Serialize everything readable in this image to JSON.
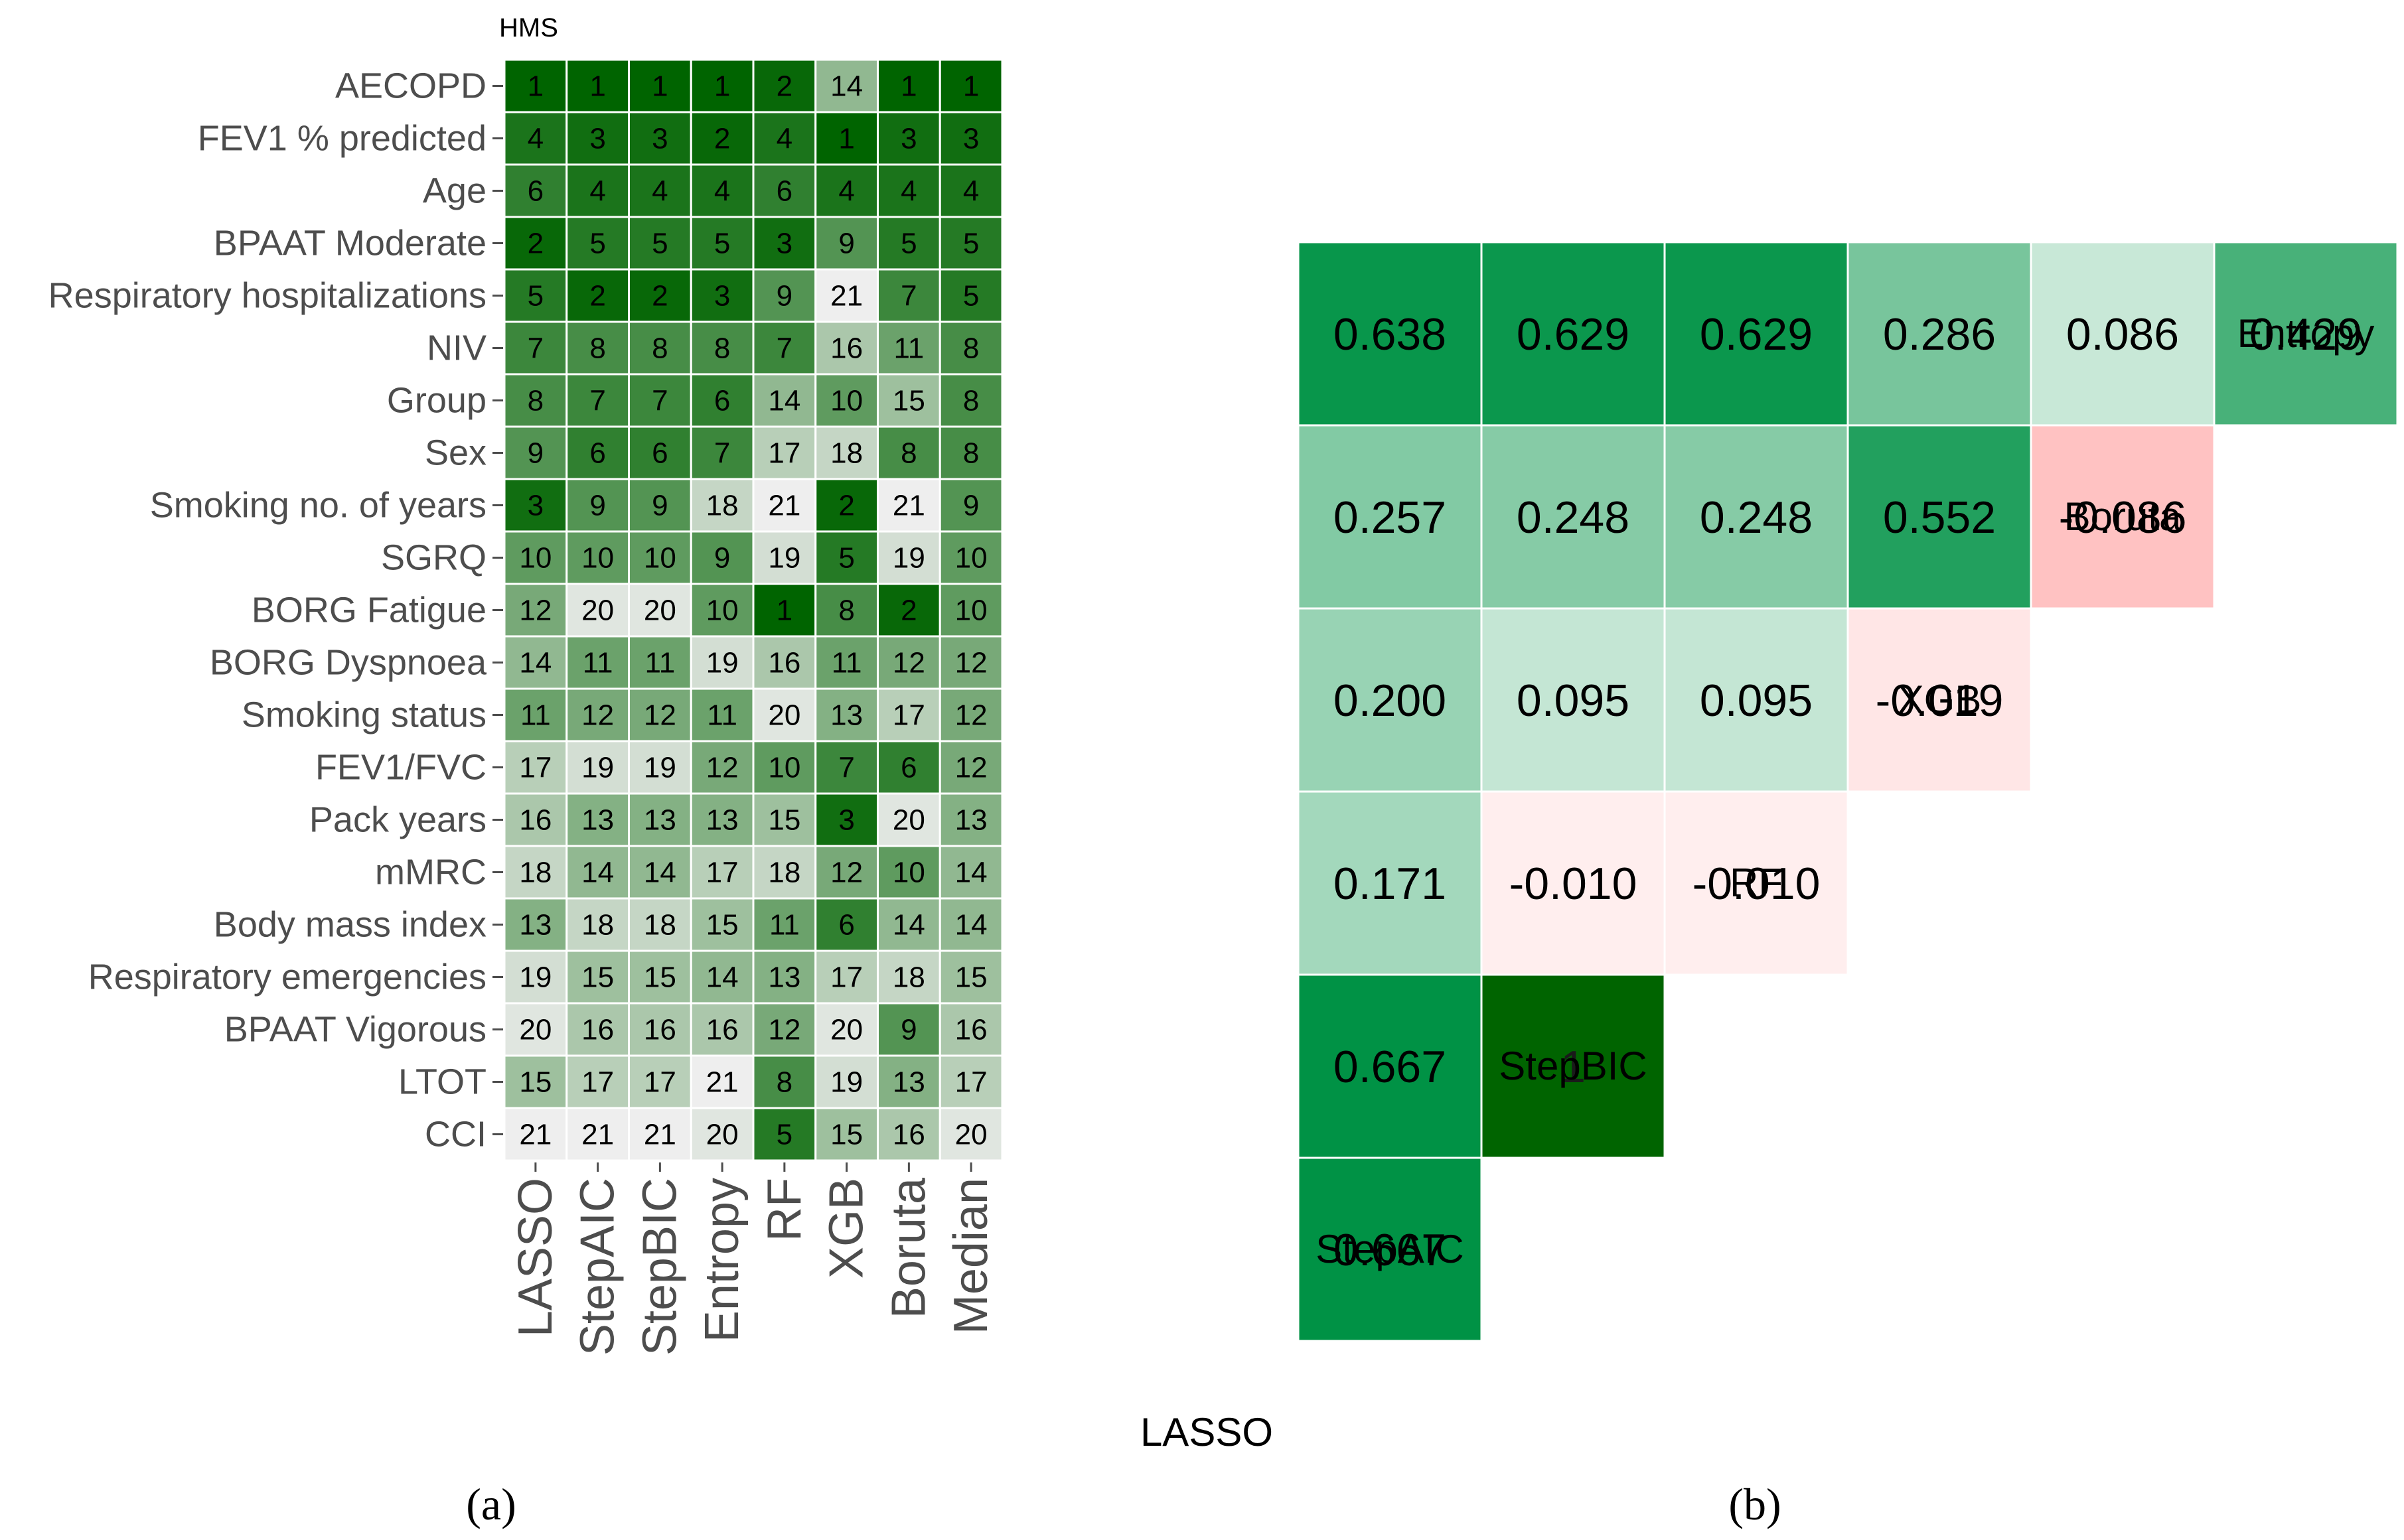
{
  "chart_data": [
    {
      "type": "heatmap",
      "title": "HMS",
      "caption": "(a)",
      "xlabel": "",
      "ylabel": "",
      "rows": [
        "AECOPD",
        "FEV1 % predicted",
        "Age",
        "BPAAT Moderate",
        "Respiratory hospitalizations",
        "NIV",
        "Group",
        "Sex",
        "Smoking no. of years",
        "SGRQ",
        "BORG Fatigue",
        "BORG Dyspnoea",
        "Smoking status",
        "FEV1/FVC",
        "Pack years",
        "mMRC",
        "Body mass index",
        "Respiratory emergencies",
        "BPAAT Vigorous",
        "LTOT",
        "CCI"
      ],
      "columns": [
        "LASSO",
        "StepAIC",
        "StepBIC",
        "Entropy",
        "RF",
        "XGB",
        "Boruta",
        "Median"
      ],
      "values": [
        [
          1,
          1,
          1,
          1,
          2,
          14,
          1,
          1
        ],
        [
          4,
          3,
          3,
          2,
          4,
          1,
          3,
          3
        ],
        [
          6,
          4,
          4,
          4,
          6,
          4,
          4,
          4
        ],
        [
          2,
          5,
          5,
          5,
          3,
          9,
          5,
          5
        ],
        [
          5,
          2,
          2,
          3,
          9,
          21,
          7,
          5
        ],
        [
          7,
          8,
          8,
          8,
          7,
          16,
          11,
          8
        ],
        [
          8,
          7,
          7,
          6,
          14,
          10,
          15,
          8
        ],
        [
          9,
          6,
          6,
          7,
          17,
          18,
          8,
          8
        ],
        [
          3,
          9,
          9,
          18,
          21,
          2,
          21,
          9
        ],
        [
          10,
          10,
          10,
          9,
          19,
          5,
          19,
          10
        ],
        [
          12,
          20,
          20,
          10,
          1,
          8,
          2,
          10
        ],
        [
          14,
          11,
          11,
          19,
          16,
          11,
          12,
          12
        ],
        [
          11,
          12,
          12,
          11,
          20,
          13,
          17,
          12
        ],
        [
          17,
          19,
          19,
          12,
          10,
          7,
          6,
          12
        ],
        [
          16,
          13,
          13,
          13,
          15,
          3,
          20,
          13
        ],
        [
          18,
          14,
          14,
          17,
          18,
          12,
          10,
          14
        ],
        [
          13,
          18,
          18,
          15,
          11,
          6,
          14,
          14
        ],
        [
          19,
          15,
          15,
          14,
          13,
          17,
          18,
          15
        ],
        [
          20,
          16,
          16,
          16,
          12,
          20,
          9,
          16
        ],
        [
          15,
          17,
          17,
          21,
          8,
          19,
          13,
          17
        ],
        [
          21,
          21,
          21,
          20,
          5,
          15,
          16,
          20
        ]
      ],
      "color_scale": {
        "low": "#006400",
        "high": "#eeeeee",
        "vmin": 1,
        "vmax": 21
      }
    },
    {
      "type": "heatmap",
      "title": "",
      "caption": "(b)",
      "xlabel": "",
      "ylabel": "",
      "labels": [
        "LASSO",
        "StepAIC",
        "StepBIC",
        "RF",
        "XGB",
        "Boruta",
        "Entropy"
      ],
      "values": [
        [
          null,
          null,
          null,
          null,
          null,
          null,
          null
        ],
        [
          "0.667",
          null,
          null,
          null,
          null,
          null,
          null
        ],
        [
          "0.667",
          "1",
          null,
          null,
          null,
          null,
          null
        ],
        [
          "0.171",
          "-0.010",
          "-0.010",
          null,
          null,
          null,
          null
        ],
        [
          "0.200",
          "0.095",
          "0.095",
          "-0.019",
          null,
          null,
          null
        ],
        [
          "0.257",
          "0.248",
          "0.248",
          "0.552",
          "-0.086",
          null,
          null
        ],
        [
          "0.638",
          "0.629",
          "0.629",
          "0.286",
          "0.086",
          "0.429",
          null
        ]
      ],
      "color_scale": {
        "negative": "#ff9999",
        "zero": "#ffffff",
        "positive": "#009245",
        "strong": "#006400"
      }
    }
  ]
}
